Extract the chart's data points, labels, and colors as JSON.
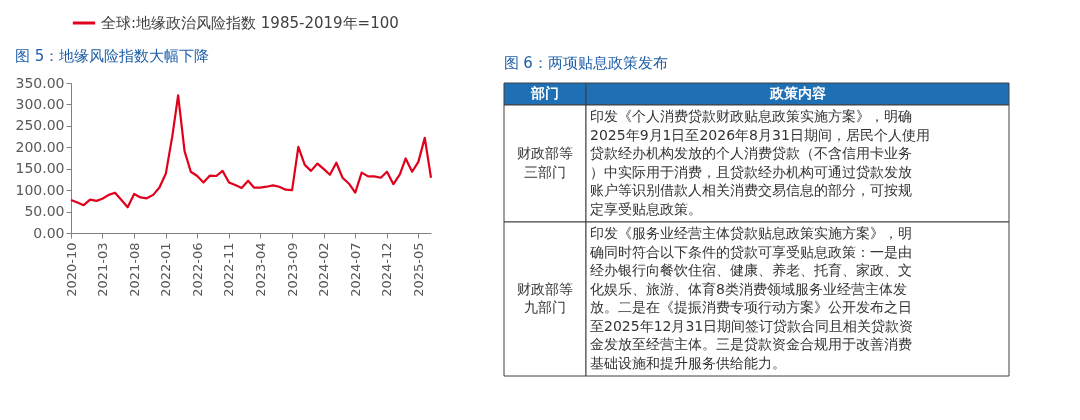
{
  "chart_data": [
    {
      "type": "line",
      "title": "图 5：地缘风险指数大幅下降",
      "x": [
        "2020-10",
        "2020-11",
        "2020-12",
        "2021-01",
        "2021-02",
        "2021-03",
        "2021-04",
        "2021-05",
        "2021-06",
        "2021-07",
        "2021-08",
        "2021-09",
        "2021-10",
        "2021-11",
        "2021-12",
        "2022-01",
        "2022-02",
        "2022-03",
        "2022-04",
        "2022-05",
        "2022-06",
        "2022-07",
        "2022-08",
        "2022-09",
        "2022-10",
        "2022-11",
        "2022-12",
        "2023-01",
        "2023-02",
        "2023-03",
        "2023-04",
        "2023-05",
        "2023-06",
        "2023-07",
        "2023-08",
        "2023-09",
        "2023-10",
        "2023-11",
        "2023-12",
        "2024-01",
        "2024-02",
        "2024-03",
        "2024-04",
        "2024-05",
        "2024-06",
        "2024-07",
        "2024-08",
        "2024-09",
        "2024-10",
        "2024-11",
        "2024-12",
        "2025-01",
        "2025-02",
        "2025-03",
        "2025-04",
        "2025-05",
        "2025-06",
        "2025-07"
      ],
      "series": [
        {
          "name": "全球:地缘政治风险指数 1985-2019年=100",
          "color": "#e0001b",
          "values": [
            77,
            71,
            65,
            78,
            75,
            80,
            89,
            94,
            77,
            60,
            91,
            83,
            81,
            89,
            106,
            139,
            226,
            321,
            191,
            143,
            133,
            118,
            134,
            133,
            145,
            118,
            112,
            105,
            122,
            106,
            106,
            108,
            111,
            108,
            101,
            100,
            201,
            159,
            145,
            162,
            149,
            136,
            164,
            129,
            115,
            94,
            141,
            132,
            132,
            129,
            143,
            114,
            137,
            174,
            143,
            166,
            222,
            129
          ]
        }
      ],
      "xlim": [
        "2020-10",
        "2025-07"
      ],
      "xticks": [
        "2020-10",
        "2021-03",
        "2021-08",
        "2022-01",
        "2022-06",
        "2022-11",
        "2023-04",
        "2023-09",
        "2024-02",
        "2024-07",
        "2024-12",
        "2025-05"
      ],
      "ylim": [
        0,
        350
      ],
      "yticks": [
        {
          "value": 0,
          "label": "0.00"
        },
        {
          "value": 50,
          "label": "50.00"
        },
        {
          "value": 100,
          "label": "100.00"
        },
        {
          "value": 150,
          "label": "150.00"
        },
        {
          "value": 200,
          "label": "200.00"
        },
        {
          "value": 250,
          "label": "250.00"
        },
        {
          "value": 300,
          "label": "300.00"
        },
        {
          "value": 350,
          "label": "350.00"
        }
      ],
      "legend": "top",
      "grid": false,
      "marker": "none",
      "line_style": "solid"
    },
    {
      "type": "other",
      "title": "图 6：两项贴息政策发布",
      "annotations": [
        "部门",
        "政策内容",
        "财政部等三部门",
        "印发《个人消费贷款财政贴息政策实施方案》，明确2025年9月1日至2026年8月31日期间，居民个人使用贷款经办机构发放的个人消费贷款（不含信用卡业务）中实际用于消费，且贷款经办机构可通过贷款发放账户等识别借款人相关消费交易信息的部分，可按规定享受贴息政策。",
        "财政部等九部门",
        "印发《服务业经营主体贷款贴息政策实施方案》，明确同时符合以下条件的贷款可享受贴息政策：一是由经办银行向餐饮住宿、健康、养老、托育、家政、文化娱乐、旅游、体育8类消费领域服务业经营主体发放。二是在《提振消费专项行动方案》公开发布之日至2025年12月31日期间签订贷款合同且相关贷款资金发放至经营主体。三是贷款资金合规用于改善消费基础设施和提升服务供给能力。"
      ]
    }
  ]
}
